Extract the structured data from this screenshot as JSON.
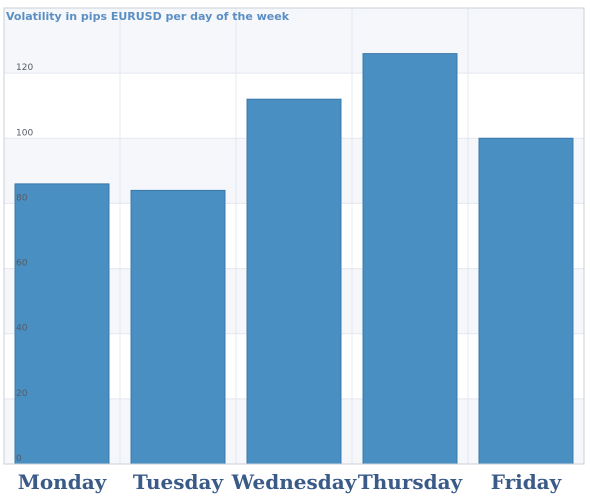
{
  "chart_data": {
    "type": "bar",
    "title": "Volatility in pips EURUSD per day of the week",
    "xlabel": "",
    "ylabel": "",
    "categories": [
      "Monday",
      "Tuesday",
      "Wednesday",
      "Thursday",
      "Friday"
    ],
    "values": [
      86,
      84,
      112,
      126,
      100
    ],
    "ylim": [
      0,
      140
    ],
    "yticks": [
      0,
      20,
      40,
      60,
      80,
      100,
      120
    ],
    "ytick_labels": [
      "0",
      "20",
      "40",
      "60",
      "80",
      "100",
      "120"
    ],
    "grid": true,
    "colors": {
      "bar": "#4a8fc2",
      "bar_edge": "#3a78aa",
      "plot_bg": "#f5f7fb",
      "band_alt": "#ffffff",
      "grid": "#e3e8f0",
      "border": "#c8d0da"
    }
  }
}
